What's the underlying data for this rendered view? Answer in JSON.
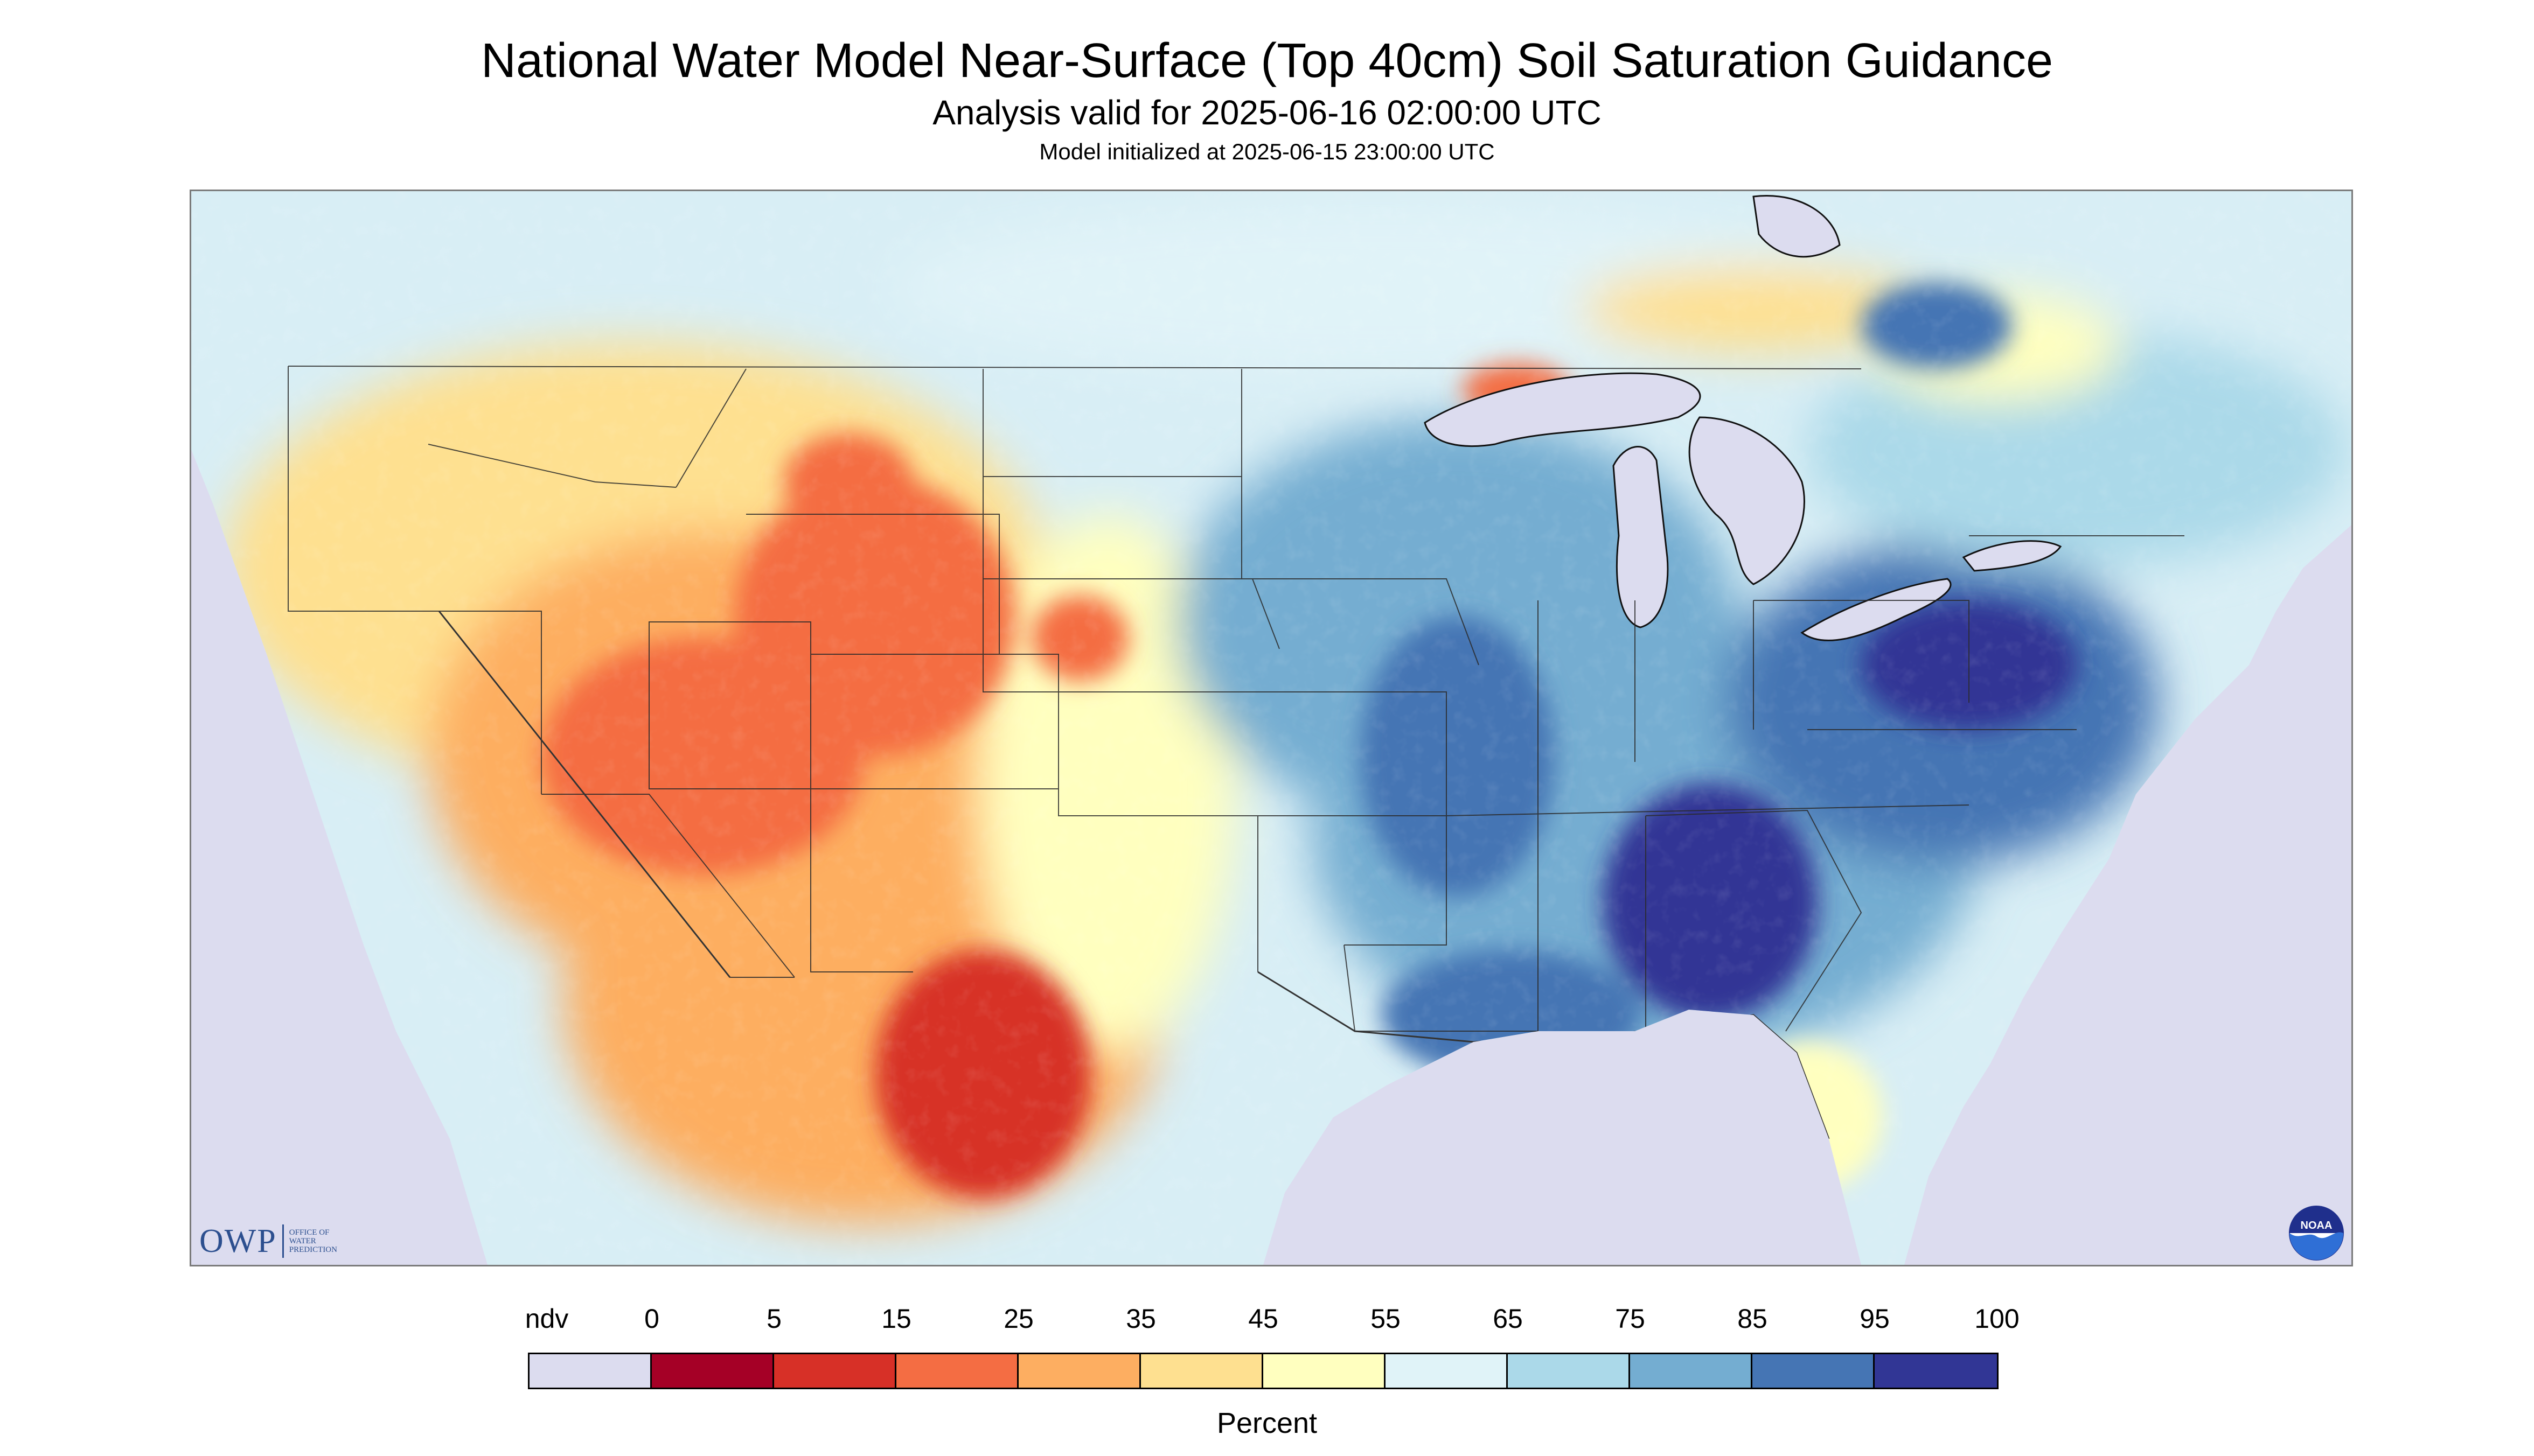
{
  "header": {
    "title": "National Water Model Near-Surface (Top 40cm) Soil Saturation Guidance",
    "valid_time": "Analysis valid for 2025-06-16 02:00:00 UTC",
    "init_time": "Model initialized at 2025-06-15 23:00:00 UTC"
  },
  "logos": {
    "owp_letters": "OWP",
    "owp_text": [
      "OFFICE OF",
      "WATER",
      "PREDICTION"
    ],
    "noaa_text": "NOAA"
  },
  "legend": {
    "units": "Percent",
    "labels": [
      "ndv",
      "0",
      "5",
      "15",
      "25",
      "35",
      "45",
      "55",
      "65",
      "75",
      "85",
      "95",
      "100"
    ],
    "bins": [
      {
        "range": "ndv",
        "color": "#dcdcef"
      },
      {
        "range": "0-5",
        "color": "#a50026"
      },
      {
        "range": "5-15",
        "color": "#d73027"
      },
      {
        "range": "15-25",
        "color": "#f46d43"
      },
      {
        "range": "25-35",
        "color": "#fdae61"
      },
      {
        "range": "35-45",
        "color": "#fee090"
      },
      {
        "range": "45-55",
        "color": "#ffffbf"
      },
      {
        "range": "55-65",
        "color": "#e0f3f8"
      },
      {
        "range": "65-75",
        "color": "#abd9e9"
      },
      {
        "range": "75-85",
        "color": "#74add1"
      },
      {
        "range": "85-95",
        "color": "#4575b4"
      },
      {
        "range": "95-100",
        "color": "#313695"
      }
    ]
  },
  "colors": {
    "no_data": "#dcdcef",
    "water": "#dcdcef",
    "ocean_outside_domain": "#dcdcef",
    "background_land": "#d8eef5",
    "border_lines": "#222222"
  }
}
